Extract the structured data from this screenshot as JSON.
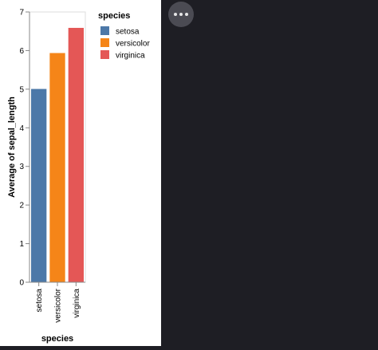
{
  "chart_data": {
    "type": "bar",
    "categories": [
      "setosa",
      "versicolor",
      "virginica"
    ],
    "values": [
      5.006,
      5.936,
      6.588
    ],
    "colors": [
      "#4c78a8",
      "#f58518",
      "#e45756"
    ],
    "xlabel": "species",
    "ylabel": "Average of sepal_length",
    "ylim": [
      0,
      7
    ],
    "yticks": [
      "0",
      "1",
      "2",
      "3",
      "4",
      "5",
      "6",
      "7"
    ],
    "grid": false,
    "legend": {
      "title": "species",
      "placement": "right",
      "items": [
        "setosa",
        "versicolor",
        "virginica"
      ]
    }
  },
  "toolbar": {
    "more_icon": "more-horizontal-icon"
  }
}
